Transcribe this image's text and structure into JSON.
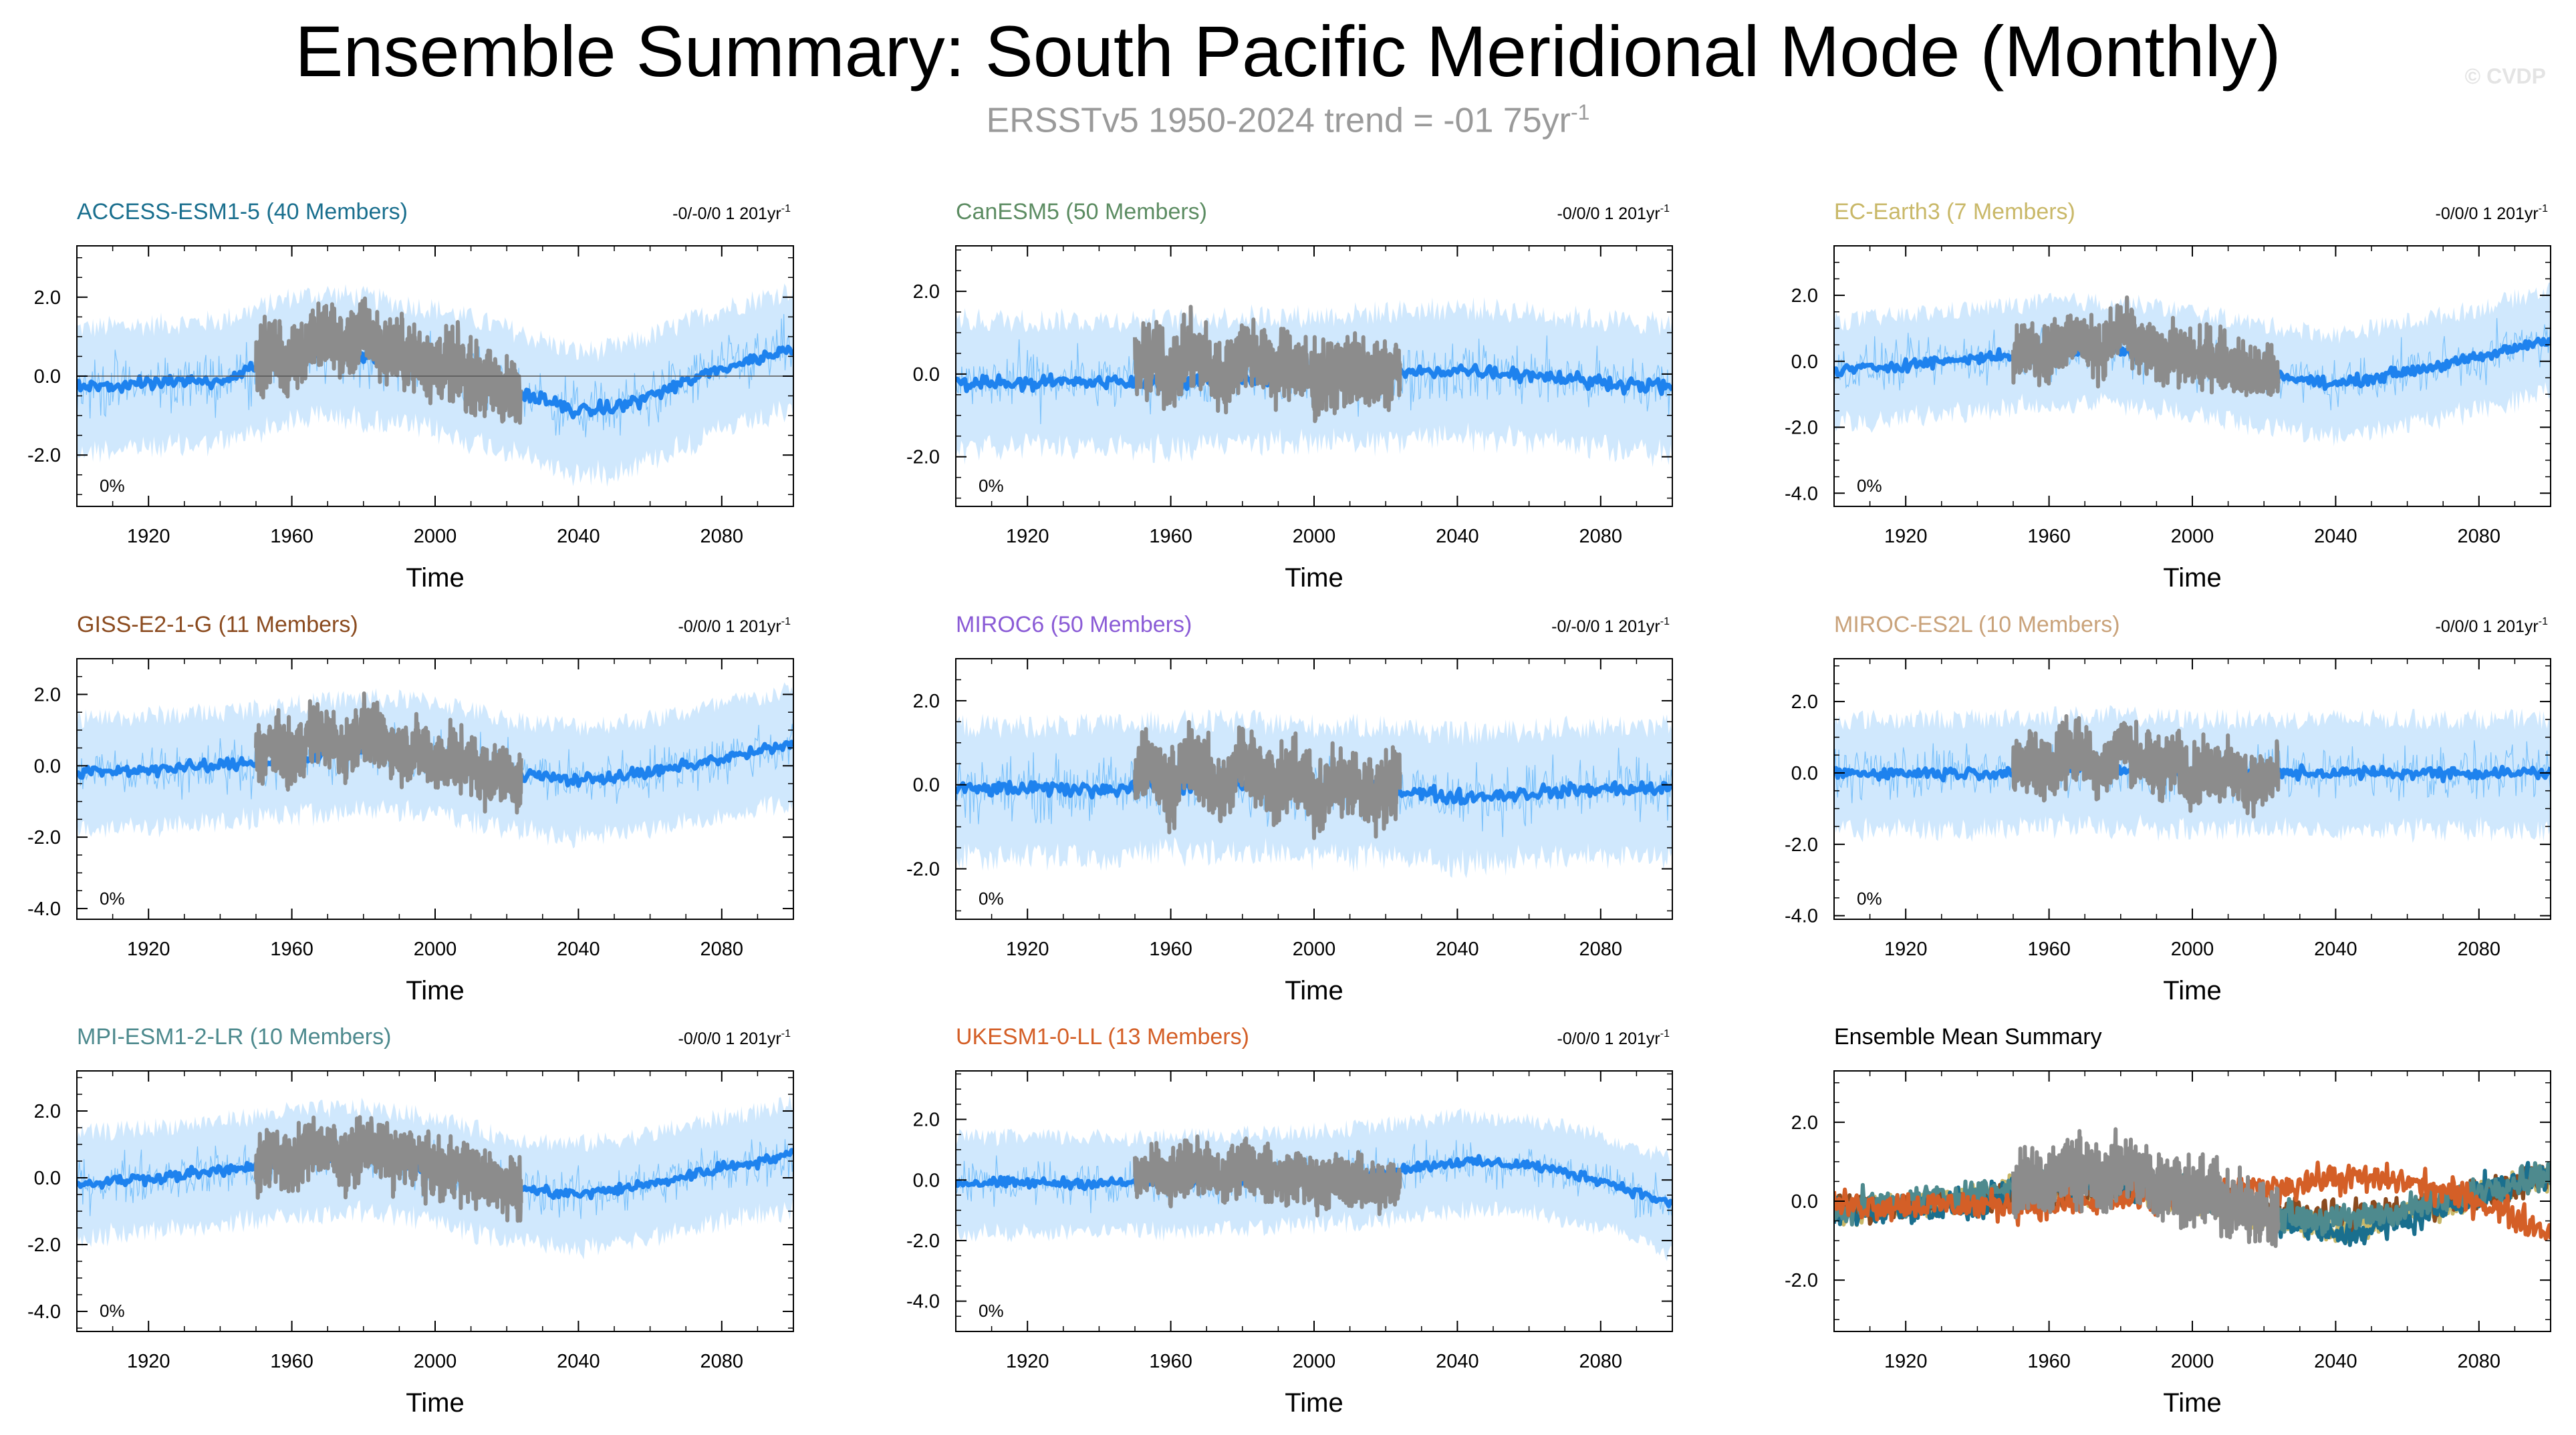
{
  "title": "Ensemble Summary: South Pacific Meridional Mode (Monthly)",
  "subtitle_main": "ERSSTv5 1950-2024 trend = -01 75yr",
  "subtitle_sup": "-1",
  "watermark": "© CVDP",
  "colors": {
    "observed": "#8c8c8c",
    "ensemble_mean": "#1e82ee",
    "members": "#66b8fa",
    "spread": "#a9d6fb"
  },
  "chart_data": [
    {
      "type": "line",
      "title": "ACCESS-ESM1-5 (40 Members)",
      "title_color": "#1a6f8e",
      "trend_label": "-0/-0/0 1 201yr",
      "trend_sup": "-1",
      "percent_label": "0%",
      "xlabel": "Time",
      "ylabel": "",
      "xlim": [
        1900,
        2100
      ],
      "ylim": [
        -3.3,
        3.3
      ],
      "x_ticks": [
        1920,
        1960,
        2000,
        2040,
        2080
      ],
      "y_ticks": [
        2,
        0,
        -2
      ],
      "y_tick_labels": [
        "2.0",
        "0.0",
        "-2.0"
      ],
      "zero_line": true,
      "series": [
        {
          "role": "observed",
          "x": [
            1950,
            1955,
            1960,
            1965,
            1970,
            1975,
            1980,
            1985,
            1990,
            1995,
            2000,
            2005,
            2010,
            2015,
            2020,
            2024
          ],
          "values": [
            0.4,
            0.6,
            0.3,
            0.9,
            1.0,
            0.7,
            1.1,
            0.8,
            0.6,
            0.5,
            0.2,
            0.3,
            0.0,
            -0.2,
            -0.4,
            -0.5
          ]
        },
        {
          "role": "ensemble_mean",
          "x": [
            1900,
            1920,
            1940,
            1960,
            1970,
            1980,
            2000,
            2020,
            2040,
            2050,
            2060,
            2080,
            2100
          ],
          "values": [
            -0.3,
            -0.2,
            -0.1,
            0.5,
            0.6,
            0.5,
            0.2,
            -0.3,
            -0.9,
            -0.8,
            -0.5,
            0.2,
            0.7
          ]
        }
      ]
    },
    {
      "type": "line",
      "title": "CanESM5 (50 Members)",
      "title_color": "#5c8c62",
      "trend_label": "-0/0/0 1 201yr",
      "trend_sup": "-1",
      "percent_label": "0%",
      "xlabel": "Time",
      "ylabel": "",
      "xlim": [
        1900,
        2100
      ],
      "ylim": [
        -3.2,
        3.1
      ],
      "x_ticks": [
        1920,
        1960,
        2000,
        2040,
        2080
      ],
      "y_ticks": [
        2,
        0,
        -2
      ],
      "y_tick_labels": [
        "2.0",
        "0.0",
        "-2.0"
      ],
      "zero_line": false,
      "series": [
        {
          "role": "observed",
          "x": [
            1950,
            1955,
            1960,
            1965,
            1970,
            1975,
            1980,
            1985,
            1990,
            1995,
            2000,
            2005,
            2010,
            2015,
            2020,
            2024
          ],
          "values": [
            0.2,
            0.4,
            -0.1,
            0.5,
            0.3,
            -0.2,
            0.6,
            0.4,
            0.1,
            0.2,
            -0.2,
            0.0,
            0.1,
            -0.1,
            0.0,
            0.2
          ]
        },
        {
          "role": "ensemble_mean",
          "x": [
            1900,
            1920,
            1940,
            1960,
            1980,
            2000,
            2020,
            2040,
            2060,
            2080,
            2100
          ],
          "values": [
            -0.2,
            -0.2,
            -0.2,
            -0.2,
            -0.1,
            -0.1,
            0.0,
            0.1,
            0.0,
            -0.2,
            -0.3
          ]
        }
      ]
    },
    {
      "type": "line",
      "title": "EC-Earth3 (7 Members)",
      "title_color": "#c9b868",
      "trend_label": "-0/0/0 1 201yr",
      "trend_sup": "-1",
      "percent_label": "0%",
      "xlabel": "Time",
      "ylabel": "",
      "xlim": [
        1900,
        2100
      ],
      "ylim": [
        -4.4,
        3.5
      ],
      "x_ticks": [
        1920,
        1960,
        2000,
        2040,
        2080
      ],
      "y_ticks": [
        2,
        0,
        -2,
        -4
      ],
      "y_tick_labels": [
        "2.0",
        "0.0",
        "-2.0",
        "-4.0"
      ],
      "zero_line": false,
      "series": [
        {
          "role": "observed",
          "x": [
            1950,
            1955,
            1960,
            1965,
            1970,
            1975,
            1980,
            1985,
            1990,
            1995,
            2000,
            2005,
            2010,
            2015,
            2020,
            2024
          ],
          "values": [
            0.1,
            0.5,
            0.2,
            0.8,
            0.6,
            0.3,
            1.0,
            0.5,
            0.2,
            0.3,
            0.0,
            0.2,
            -0.1,
            -0.3,
            -0.4,
            -0.6
          ]
        },
        {
          "role": "ensemble_mean",
          "x": [
            1900,
            1920,
            1940,
            1960,
            1980,
            2000,
            2020,
            2040,
            2060,
            2080,
            2100
          ],
          "values": [
            -0.3,
            -0.1,
            0.1,
            0.3,
            0.3,
            0.0,
            -0.4,
            -0.7,
            -0.3,
            0.1,
            0.7
          ]
        }
      ]
    },
    {
      "type": "line",
      "title": "GISS-E2-1-G (11 Members)",
      "title_color": "#8a4a1e",
      "trend_label": "-0/0/0 1 201yr",
      "trend_sup": "-1",
      "percent_label": "0%",
      "xlabel": "Time",
      "ylabel": "",
      "xlim": [
        1900,
        2100
      ],
      "ylim": [
        -4.3,
        3.0
      ],
      "x_ticks": [
        1920,
        1960,
        2000,
        2040,
        2080
      ],
      "y_ticks": [
        2,
        0,
        -2,
        -4
      ],
      "y_tick_labels": [
        "2.0",
        "0.0",
        "-2.0",
        "-4.0"
      ],
      "zero_line": false,
      "series": [
        {
          "role": "observed",
          "x": [
            1950,
            1955,
            1960,
            1965,
            1970,
            1975,
            1980,
            1985,
            1990,
            1995,
            2000,
            2005,
            2010,
            2015,
            2020,
            2024
          ],
          "values": [
            0.3,
            0.6,
            0.2,
            0.9,
            0.8,
            0.4,
            1.0,
            0.7,
            0.4,
            0.5,
            0.1,
            0.2,
            0.0,
            -0.2,
            -0.3,
            -0.5
          ]
        },
        {
          "role": "ensemble_mean",
          "x": [
            1900,
            1920,
            1940,
            1960,
            1980,
            2000,
            2020,
            2040,
            2060,
            2080,
            2100
          ],
          "values": [
            -0.2,
            -0.1,
            0.0,
            0.2,
            0.4,
            0.3,
            -0.2,
            -0.4,
            -0.2,
            0.2,
            0.6
          ]
        }
      ]
    },
    {
      "type": "line",
      "title": "MIROC6 (50 Members)",
      "title_color": "#8a5bd6",
      "trend_label": "-0/-0/0 1 201yr",
      "trend_sup": "-1",
      "percent_label": "0%",
      "xlabel": "Time",
      "ylabel": "",
      "xlim": [
        1900,
        2100
      ],
      "ylim": [
        -3.2,
        3.0
      ],
      "x_ticks": [
        1920,
        1960,
        2000,
        2040,
        2080
      ],
      "y_ticks": [
        2,
        0,
        -2
      ],
      "y_tick_labels": [
        "2.0",
        "0.0",
        "-2.0"
      ],
      "zero_line": false,
      "series": [
        {
          "role": "observed",
          "x": [
            1950,
            1955,
            1960,
            1965,
            1970,
            1975,
            1980,
            1985,
            1990,
            1995,
            2000,
            2005,
            2010,
            2015,
            2020,
            2024
          ],
          "values": [
            0.2,
            0.4,
            -0.1,
            0.6,
            0.3,
            -0.2,
            0.7,
            0.3,
            0.0,
            0.2,
            -0.3,
            0.0,
            0.1,
            -0.2,
            -0.1,
            0.1
          ]
        },
        {
          "role": "ensemble_mean",
          "x": [
            1900,
            1920,
            1940,
            1960,
            1980,
            2000,
            2020,
            2040,
            2060,
            2080,
            2100
          ],
          "values": [
            -0.1,
            -0.1,
            -0.1,
            0.0,
            0.0,
            -0.1,
            -0.1,
            -0.3,
            -0.2,
            -0.1,
            -0.1
          ]
        }
      ]
    },
    {
      "type": "line",
      "title": "MIROC-ES2L (10 Members)",
      "title_color": "#c9a27a",
      "trend_label": "-0/0/0 1 201yr",
      "trend_sup": "-1",
      "percent_label": "0%",
      "xlabel": "Time",
      "ylabel": "",
      "xlim": [
        1900,
        2100
      ],
      "ylim": [
        -4.1,
        3.2
      ],
      "x_ticks": [
        1920,
        1960,
        2000,
        2040,
        2080
      ],
      "y_ticks": [
        2,
        0,
        -2,
        -4
      ],
      "y_tick_labels": [
        "2.0",
        "0.0",
        "-2.0",
        "-4.0"
      ],
      "zero_line": false,
      "series": [
        {
          "role": "observed",
          "x": [
            1950,
            1955,
            1960,
            1965,
            1970,
            1975,
            1980,
            1985,
            1990,
            1995,
            2000,
            2005,
            2010,
            2015,
            2020,
            2024
          ],
          "values": [
            0.1,
            0.4,
            0.0,
            0.7,
            0.5,
            0.1,
            0.8,
            0.4,
            0.1,
            0.3,
            -0.1,
            0.1,
            0.0,
            -0.2,
            -0.2,
            0.0
          ]
        },
        {
          "role": "ensemble_mean",
          "x": [
            1900,
            1920,
            1940,
            1960,
            1980,
            2000,
            2020,
            2040,
            2060,
            2080,
            2100
          ],
          "values": [
            0.0,
            0.0,
            0.0,
            0.1,
            0.1,
            0.0,
            0.0,
            0.0,
            0.0,
            0.0,
            0.0
          ]
        }
      ]
    },
    {
      "type": "line",
      "title": "MPI-ESM1-2-LR (10 Members)",
      "title_color": "#4e8a8e",
      "trend_label": "-0/0/0 1 201yr",
      "trend_sup": "-1",
      "percent_label": "0%",
      "xlabel": "Time",
      "ylabel": "",
      "xlim": [
        1900,
        2100
      ],
      "ylim": [
        -4.6,
        3.2
      ],
      "x_ticks": [
        1920,
        1960,
        2000,
        2040,
        2080
      ],
      "y_ticks": [
        2,
        0,
        -2,
        -4
      ],
      "y_tick_labels": [
        "2.0",
        "0.0",
        "-2.0",
        "-4.0"
      ],
      "zero_line": false,
      "series": [
        {
          "role": "observed",
          "x": [
            1950,
            1955,
            1960,
            1965,
            1970,
            1975,
            1980,
            1985,
            1990,
            1995,
            2000,
            2005,
            2010,
            2015,
            2020,
            2024
          ],
          "values": [
            0.3,
            0.7,
            0.3,
            1.0,
            0.9,
            0.5,
            1.0,
            0.8,
            0.5,
            0.6,
            0.2,
            0.3,
            0.1,
            -0.1,
            -0.2,
            -0.4
          ]
        },
        {
          "role": "ensemble_mean",
          "x": [
            1900,
            1920,
            1940,
            1960,
            1980,
            2000,
            2020,
            2040,
            2060,
            2080,
            2100
          ],
          "values": [
            -0.2,
            0.0,
            0.2,
            0.5,
            0.6,
            0.3,
            -0.3,
            -0.5,
            -0.2,
            0.3,
            0.7
          ]
        }
      ]
    },
    {
      "type": "line",
      "title": "UKESM1-0-LL (13 Members)",
      "title_color": "#d45f27",
      "trend_label": "-0/0/0 1 201yr",
      "trend_sup": "-1",
      "percent_label": "0%",
      "xlabel": "Time",
      "ylabel": "",
      "xlim": [
        1900,
        2100
      ],
      "ylim": [
        -5.0,
        3.6
      ],
      "x_ticks": [
        1920,
        1960,
        2000,
        2040,
        2080
      ],
      "y_ticks": [
        2,
        0,
        -2,
        -4
      ],
      "y_tick_labels": [
        "2.0",
        "0.0",
        "-2.0",
        "-4.0"
      ],
      "zero_line": false,
      "series": [
        {
          "role": "observed",
          "x": [
            1950,
            1955,
            1960,
            1965,
            1970,
            1975,
            1980,
            1985,
            1990,
            1995,
            2000,
            2005,
            2010,
            2015,
            2020,
            2024
          ],
          "values": [
            0.1,
            0.3,
            -0.1,
            0.5,
            0.3,
            -0.1,
            0.6,
            0.3,
            0.0,
            0.2,
            -0.2,
            0.0,
            0.0,
            -0.2,
            -0.2,
            0.0
          ]
        },
        {
          "role": "ensemble_mean",
          "x": [
            1900,
            1920,
            1940,
            1960,
            1980,
            2000,
            2020,
            2040,
            2060,
            2080,
            2100
          ],
          "values": [
            -0.1,
            -0.1,
            -0.1,
            -0.1,
            0.0,
            0.1,
            0.3,
            0.6,
            0.5,
            0.0,
            -0.8
          ]
        }
      ]
    },
    {
      "type": "line",
      "title": "Ensemble Mean Summary",
      "title_color": "#000000",
      "xlabel": "Time",
      "ylabel": "",
      "xlim": [
        1900,
        2100
      ],
      "ylim": [
        -3.3,
        3.3
      ],
      "x_ticks": [
        1920,
        1960,
        2000,
        2040,
        2080
      ],
      "y_ticks": [
        2,
        0,
        -2
      ],
      "y_tick_labels": [
        "2.0",
        "0.0",
        "-2.0"
      ],
      "zero_line": false,
      "series": [
        {
          "role": "observed",
          "color": "#8c8c8c",
          "x": [
            1950,
            1955,
            1960,
            1965,
            1970,
            1975,
            1980,
            1985,
            1990,
            1995,
            2000,
            2005,
            2010,
            2015,
            2020,
            2024
          ],
          "values": [
            0.3,
            0.6,
            0.2,
            0.9,
            0.8,
            0.4,
            1.0,
            0.7,
            0.4,
            0.5,
            0.1,
            0.2,
            0.0,
            -0.2,
            -0.3,
            -0.5
          ]
        },
        {
          "role": "model",
          "color": "#c9b868",
          "x": [
            1900,
            1920,
            1940,
            1960,
            1980,
            2000,
            2020,
            2040,
            2060,
            2080,
            2100
          ],
          "values": [
            -0.3,
            -0.1,
            0.1,
            0.3,
            0.3,
            0.0,
            -0.4,
            -0.7,
            -0.3,
            0.1,
            0.7
          ]
        },
        {
          "role": "model",
          "color": "#8a4a1e",
          "x": [
            1900,
            1920,
            1940,
            1960,
            1980,
            2000,
            2020,
            2040,
            2060,
            2080,
            2100
          ],
          "values": [
            -0.2,
            -0.1,
            0.0,
            0.2,
            0.4,
            0.3,
            -0.2,
            -0.4,
            -0.2,
            0.2,
            0.6
          ]
        },
        {
          "role": "model",
          "color": "#1a6f8e",
          "x": [
            1900,
            1920,
            1940,
            1960,
            1980,
            2000,
            2020,
            2040,
            2060,
            2080,
            2100
          ],
          "values": [
            -0.3,
            -0.2,
            -0.1,
            0.5,
            0.5,
            0.2,
            -0.3,
            -0.9,
            -0.5,
            0.2,
            0.7
          ]
        },
        {
          "role": "model",
          "color": "#4e8a8e",
          "x": [
            1900,
            1920,
            1940,
            1960,
            1980,
            2000,
            2020,
            2040,
            2060,
            2080,
            2100
          ],
          "values": [
            -0.2,
            0.0,
            0.2,
            0.5,
            0.6,
            0.3,
            -0.3,
            -0.5,
            -0.2,
            0.3,
            0.7
          ]
        },
        {
          "role": "model",
          "color": "#d45f27",
          "x": [
            1900,
            1920,
            1940,
            1960,
            1980,
            2000,
            2020,
            2040,
            2060,
            2080,
            2100
          ],
          "values": [
            -0.1,
            -0.1,
            -0.1,
            -0.1,
            0.0,
            0.1,
            0.3,
            0.6,
            0.5,
            0.0,
            -0.8
          ]
        }
      ]
    }
  ]
}
